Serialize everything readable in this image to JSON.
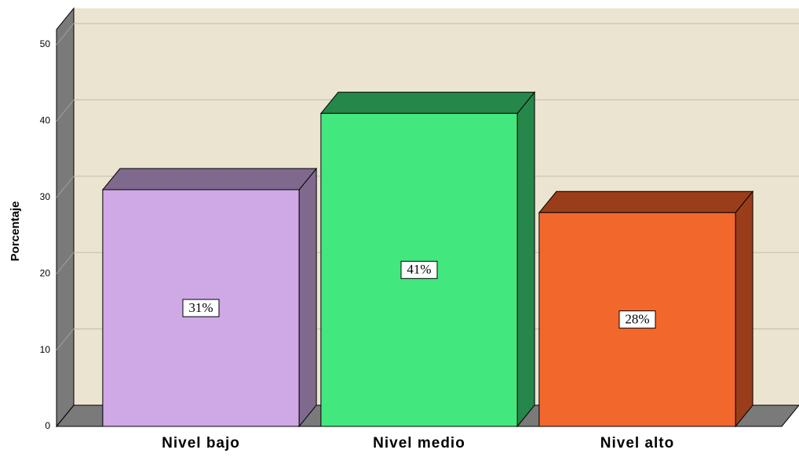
{
  "chart_data": {
    "type": "bar3d",
    "y_label": "Porcentaje",
    "categories": [
      "Nivel bajo",
      "Nivel medio",
      "Nivel alto"
    ],
    "values": [
      31,
      41,
      28
    ],
    "value_labels": [
      "31%",
      "41%",
      "28%"
    ],
    "colors": [
      "#cfa8e6",
      "#42e87e",
      "#f2672c"
    ],
    "side_colors": [
      "#7f6a8e",
      "#25874a",
      "#9a3d1b"
    ],
    "ylim": [
      0,
      52
    ],
    "yticks": [
      0,
      10,
      20,
      30,
      40,
      50
    ],
    "grid": true
  }
}
